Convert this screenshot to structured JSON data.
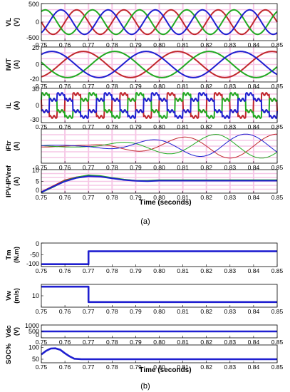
{
  "figure": {
    "caption_a": "(a)",
    "caption_b": "(b)",
    "xlabel": "Time (seconds)",
    "palette": {
      "red": "#c1272d",
      "green": "#22aa22",
      "blue": "#1f1fd0",
      "grid": "#f6c7e6"
    }
  },
  "chart_data": [
    {
      "type": "line",
      "id": "VL",
      "group": "a",
      "ylabel": "VL",
      "yunit": "(V)",
      "xlim": [
        0.75,
        0.85
      ],
      "xticks": [
        0.75,
        0.76,
        0.77,
        0.78,
        0.79,
        0.8,
        0.81,
        0.82,
        0.83,
        0.84,
        0.85
      ],
      "xtick_labels": [
        "0.75",
        "0.76",
        "0.77",
        "0.78",
        "0.79",
        "0.80",
        "0.81",
        "0.82",
        "0.83",
        "0.84",
        "0.85"
      ],
      "ylim": [
        -500,
        500
      ],
      "ytick_labels": [
        "500",
        "0",
        "-500"
      ],
      "yticks": [
        500,
        0,
        -500
      ],
      "grid": true,
      "series": [
        {
          "color": "red",
          "form": "sine",
          "amp": 330,
          "freq": 50,
          "phase_deg": 0
        },
        {
          "color": "green",
          "form": "sine",
          "amp": 330,
          "freq": 50,
          "phase_deg": -120
        },
        {
          "color": "blue",
          "form": "sine",
          "amp": 330,
          "freq": 50,
          "phase_deg": 120
        }
      ]
    },
    {
      "type": "line",
      "id": "IWT",
      "group": "a",
      "ylabel": "IWT",
      "yunit": "(A)",
      "xlim": [
        0.75,
        0.85
      ],
      "ylim": [
        -20,
        20
      ],
      "ytick_labels": [
        "20",
        "0",
        "-20"
      ],
      "yticks": [
        20,
        0,
        -20
      ],
      "grid": true,
      "series": [
        {
          "color": "red",
          "form": "sine",
          "amp": 15,
          "freq": 25,
          "phase_deg": 20
        },
        {
          "color": "green",
          "form": "sine",
          "amp": 15,
          "freq": 25,
          "phase_deg": -100
        },
        {
          "color": "blue",
          "form": "sine",
          "amp": 15,
          "freq": 25,
          "phase_deg": 140
        }
      ]
    },
    {
      "type": "line",
      "id": "iL",
      "group": "a",
      "ylabel": "iL",
      "yunit": "(A)",
      "xlim": [
        0.75,
        0.85
      ],
      "ylim": [
        -30,
        30
      ],
      "ytick_labels": [
        "30",
        "0",
        "-30"
      ],
      "yticks": [
        30,
        0,
        -30
      ],
      "grid": true,
      "series": [
        {
          "color": "red",
          "form": "six-step",
          "amp": 20,
          "freq": 50,
          "phase_deg": 0
        },
        {
          "color": "green",
          "form": "six-step",
          "amp": 20,
          "freq": 50,
          "phase_deg": -120
        },
        {
          "color": "blue",
          "form": "six-step",
          "amp": 20,
          "freq": 50,
          "phase_deg": 120
        }
      ]
    },
    {
      "type": "line",
      "id": "iFtr",
      "group": "a",
      "ylabel": "iFtr",
      "yunit": "(A)",
      "xlim": [
        0.75,
        0.85
      ],
      "ylim": [
        -10,
        10
      ],
      "ytick_labels": [],
      "grid": true,
      "series": [
        {
          "color": "red",
          "form": "growing-sine",
          "amp": 7,
          "freq": 25,
          "phase_deg": 0,
          "onset": 0.77
        },
        {
          "color": "green",
          "form": "growing-sine",
          "amp": 7,
          "freq": 25,
          "phase_deg": -120,
          "onset": 0.77
        },
        {
          "color": "blue",
          "form": "growing-sine",
          "amp": 7,
          "freq": 25,
          "phase_deg": 120,
          "onset": 0.77
        }
      ]
    },
    {
      "type": "line",
      "id": "IPV",
      "group": "a",
      "ylabel": "IPV-IPVref",
      "yunit": "(A)",
      "xlim": [
        0.75,
        0.85
      ],
      "ylim": [
        0,
        10
      ],
      "ytick_labels": [
        "10",
        "5",
        "0"
      ],
      "yticks": [
        10,
        5,
        0
      ],
      "grid": true,
      "series": [
        {
          "color": "red",
          "form": "response",
          "points": [
            [
              0.75,
              0.5
            ],
            [
              0.755,
              3
            ],
            [
              0.76,
              5.5
            ],
            [
              0.765,
              6.8
            ],
            [
              0.77,
              7.4
            ],
            [
              0.775,
              7.1
            ],
            [
              0.78,
              6.4
            ],
            [
              0.785,
              5.7
            ],
            [
              0.79,
              5.3
            ],
            [
              0.795,
              5.2
            ],
            [
              0.8,
              5.4
            ],
            [
              0.85,
              5.4
            ]
          ]
        },
        {
          "color": "green",
          "form": "response",
          "points": [
            [
              0.75,
              0.3
            ],
            [
              0.755,
              2.6
            ],
            [
              0.76,
              5.2
            ],
            [
              0.765,
              6.7
            ],
            [
              0.77,
              7.6
            ],
            [
              0.775,
              7.3
            ],
            [
              0.78,
              6.5
            ],
            [
              0.785,
              5.8
            ],
            [
              0.79,
              5.3
            ],
            [
              0.795,
              5.3
            ],
            [
              0.8,
              5.5
            ],
            [
              0.85,
              5.5
            ]
          ]
        },
        {
          "color": "blue",
          "form": "response",
          "points": [
            [
              0.75,
              0.4
            ],
            [
              0.755,
              2.8
            ],
            [
              0.76,
              5.0
            ],
            [
              0.765,
              6.5
            ],
            [
              0.77,
              7.2
            ],
            [
              0.775,
              7.0
            ],
            [
              0.78,
              6.3
            ],
            [
              0.785,
              5.6
            ],
            [
              0.79,
              5.2
            ],
            [
              0.795,
              5.1
            ],
            [
              0.8,
              5.3
            ],
            [
              0.85,
              5.3
            ]
          ]
        }
      ]
    },
    {
      "type": "line",
      "id": "Tm",
      "group": "b",
      "ylabel": "Tm",
      "yunit": "(N.m)",
      "xlim": [
        0.75,
        0.85
      ],
      "ylim": [
        -100,
        0
      ],
      "ytick_labels": [
        "0",
        "-50",
        "-100"
      ],
      "yticks": [
        0,
        -50,
        -100
      ],
      "grid": false,
      "series": [
        {
          "color": "blue",
          "form": "step",
          "points": [
            [
              0.75,
              -90
            ],
            [
              0.77,
              -90
            ],
            [
              0.77,
              -35
            ],
            [
              0.85,
              -35
            ]
          ]
        }
      ]
    },
    {
      "type": "line",
      "id": "Vw",
      "group": "b",
      "ylabel": "Vw",
      "yunit": "(m/s)",
      "xlim": [
        0.75,
        0.85
      ],
      "ylim": [
        8,
        12
      ],
      "ytick_labels": [
        "10"
      ],
      "yticks": [
        10
      ],
      "grid": false,
      "series": [
        {
          "color": "blue",
          "form": "step",
          "points": [
            [
              0.75,
              11.6
            ],
            [
              0.77,
              11.6
            ],
            [
              0.77,
              8.9
            ],
            [
              0.85,
              8.9
            ]
          ]
        }
      ]
    },
    {
      "type": "line",
      "id": "Vdc",
      "group": "b",
      "ylabel": "Vdc",
      "yunit": "(V)",
      "xlim": [
        0.75,
        0.85
      ],
      "ylim": [
        0,
        1000
      ],
      "ytick_labels": [
        "1000",
        "500",
        "0"
      ],
      "yticks": [
        1000,
        500,
        0
      ],
      "grid": false,
      "series": [
        {
          "color": "blue",
          "form": "step",
          "points": [
            [
              0.75,
              500
            ],
            [
              0.85,
              500
            ]
          ]
        }
      ]
    },
    {
      "type": "line",
      "id": "SOC",
      "group": "b",
      "ylabel": "SOC%",
      "yunit": "",
      "xlim": [
        0.75,
        0.85
      ],
      "xticks": [
        0.75,
        0.76,
        0.77,
        0.78,
        0.79,
        0.8,
        0.81,
        0.82,
        0.83,
        0.84,
        0.85
      ],
      "xtick_labels": [
        "0.75",
        "0.76",
        "0.77",
        "0.78",
        "0.79",
        "0.80",
        "0.81",
        "0.82",
        "0.83",
        "0.84",
        "0.85"
      ],
      "ylim": [
        35,
        110
      ],
      "ytick_labels": [
        "100",
        "50"
      ],
      "yticks": [
        100,
        50
      ],
      "grid": false,
      "series": [
        {
          "color": "blue",
          "form": "response",
          "points": [
            [
              0.75,
              70
            ],
            [
              0.752,
              85
            ],
            [
              0.754,
              95
            ],
            [
              0.756,
              96
            ],
            [
              0.758,
              90
            ],
            [
              0.76,
              75
            ],
            [
              0.762,
              62
            ],
            [
              0.764,
              52
            ],
            [
              0.767,
              50
            ],
            [
              0.85,
              50
            ]
          ]
        }
      ]
    }
  ]
}
